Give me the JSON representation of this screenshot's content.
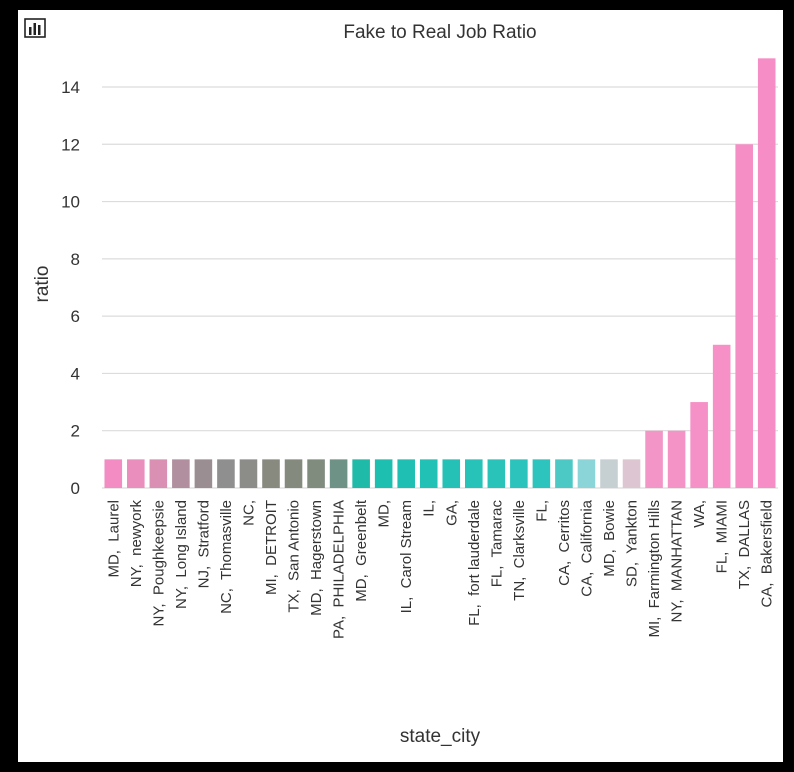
{
  "chart_data": {
    "type": "bar",
    "title": "Fake to Real Job Ratio",
    "xlabel": "state_city",
    "ylabel": "ratio",
    "ylim": [
      0,
      15.5
    ],
    "yticks": [
      0,
      2,
      4,
      6,
      8,
      10,
      12,
      14
    ],
    "grid": true,
    "categories": [
      "MD,  Laurel",
      "NY,  newyork",
      "NY,  Poughkeepsie",
      "NY,  Long Island",
      "NJ,  Stratford",
      "NC,  Thomasville",
      "NC,",
      "MI,  DETROIT",
      "TX,  San Antonio",
      "MD,  Hagerstown",
      "PA,  PHILADELPHIA",
      "MD,  Greenbelt",
      "MD,",
      "IL,  Carol Stream",
      "IL,",
      "GA,",
      "FL,  fort lauderdale",
      "FL,  Tamarac",
      "TN,  Clarksville",
      "FL,",
      "CA,  Cerritos",
      "CA,  California",
      "MD,  Bowie",
      "SD,  Yankton",
      "MI,  Farmington Hills",
      "NY,  MANHATTAN",
      "WA,",
      "FL,  MIAMI",
      "TX,  DALLAS",
      "CA,  Bakersfield"
    ],
    "values": [
      1,
      1,
      1,
      1,
      1,
      1,
      1,
      1,
      1,
      1,
      1,
      1,
      1,
      1,
      1,
      1,
      1,
      1,
      1,
      1,
      1,
      1,
      1,
      1,
      2,
      2,
      3,
      5,
      12,
      15
    ],
    "colors": [
      "#f28cc2",
      "#ea8ebd",
      "#d990b3",
      "#b18f9f",
      "#9a8e92",
      "#8f8f8f",
      "#8c8c88",
      "#888a80",
      "#848a7d",
      "#808c7e",
      "#6f9286",
      "#1fbaa8",
      "#1cbfb0",
      "#1fc0b3",
      "#22c1b5",
      "#25c1b6",
      "#27c2b8",
      "#29c3ba",
      "#2bc3bc",
      "#2dc4bd",
      "#4cc8c5",
      "#8bd5d8",
      "#c6d0d2",
      "#ddc6d2",
      "#f396c7",
      "#f493c6",
      "#f591c6",
      "#f690c6",
      "#f68ec6",
      "#f78dc6"
    ]
  }
}
